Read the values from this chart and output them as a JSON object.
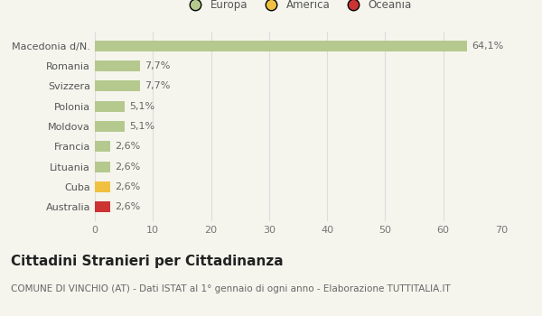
{
  "categories": [
    "Australia",
    "Cuba",
    "Lituania",
    "Francia",
    "Moldova",
    "Polonia",
    "Svizzera",
    "Romania",
    "Macedonia d/N."
  ],
  "values": [
    2.6,
    2.6,
    2.6,
    2.6,
    5.1,
    5.1,
    7.7,
    7.7,
    64.1
  ],
  "labels": [
    "2,6%",
    "2,6%",
    "2,6%",
    "2,6%",
    "5,1%",
    "5,1%",
    "7,7%",
    "7,7%",
    "64,1%"
  ],
  "colors": [
    "#cc3333",
    "#f0c040",
    "#b5c98e",
    "#b5c98e",
    "#b5c98e",
    "#b5c98e",
    "#b5c98e",
    "#b5c98e",
    "#b5c98e"
  ],
  "legend_items": [
    {
      "label": "Europa",
      "color": "#b5c98e"
    },
    {
      "label": "America",
      "color": "#f0c040"
    },
    {
      "label": "Oceania",
      "color": "#cc3333"
    }
  ],
  "xlim": [
    0,
    70
  ],
  "xticks": [
    0,
    10,
    20,
    30,
    40,
    50,
    60,
    70
  ],
  "title": "Cittadini Stranieri per Cittadinanza",
  "subtitle": "COMUNE DI VINCHIO (AT) - Dati ISTAT al 1° gennaio di ogni anno - Elaborazione TUTTITALIA.IT",
  "background_color": "#f5f5ee",
  "grid_color": "#dddddd",
  "bar_height": 0.55,
  "label_fontsize": 8,
  "title_fontsize": 11,
  "subtitle_fontsize": 7.5
}
